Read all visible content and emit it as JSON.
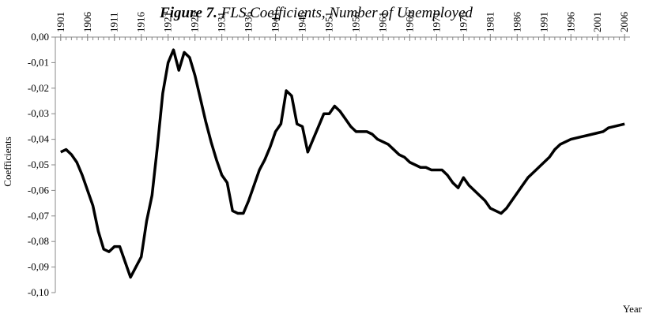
{
  "chart_data": {
    "type": "line",
    "figure_label": "Figure 7.",
    "title": "FLS Coefficients, Number of Unemployed",
    "ylabel": "Coefficients",
    "xlabel": "Year",
    "x": [
      1901,
      1902,
      1903,
      1904,
      1905,
      1906,
      1907,
      1908,
      1909,
      1910,
      1911,
      1912,
      1913,
      1914,
      1915,
      1916,
      1917,
      1918,
      1919,
      1920,
      1921,
      1922,
      1923,
      1924,
      1925,
      1926,
      1927,
      1928,
      1929,
      1930,
      1931,
      1932,
      1933,
      1934,
      1935,
      1936,
      1937,
      1938,
      1939,
      1940,
      1941,
      1942,
      1943,
      1944,
      1945,
      1946,
      1947,
      1948,
      1949,
      1950,
      1951,
      1952,
      1953,
      1954,
      1955,
      1956,
      1957,
      1958,
      1959,
      1960,
      1961,
      1962,
      1963,
      1964,
      1965,
      1966,
      1967,
      1968,
      1969,
      1970,
      1971,
      1972,
      1973,
      1974,
      1975,
      1976,
      1977,
      1978,
      1979,
      1980,
      1981,
      1982,
      1983,
      1984,
      1985,
      1986,
      1987,
      1988,
      1989,
      1990,
      1991,
      1992,
      1993,
      1994,
      1995,
      1996,
      1997,
      1998,
      1999,
      2000,
      2001,
      2002,
      2003,
      2004,
      2005,
      2006
    ],
    "series": [
      {
        "name": "FLS Coefficients",
        "color": "#000000",
        "values": [
          -0.045,
          -0.044,
          -0.046,
          -0.049,
          -0.054,
          -0.06,
          -0.066,
          -0.076,
          -0.083,
          -0.084,
          -0.082,
          -0.082,
          -0.088,
          -0.094,
          -0.09,
          -0.086,
          -0.072,
          -0.062,
          -0.043,
          -0.022,
          -0.01,
          -0.005,
          -0.013,
          -0.006,
          -0.008,
          -0.015,
          -0.024,
          -0.033,
          -0.041,
          -0.048,
          -0.054,
          -0.057,
          -0.068,
          -0.069,
          -0.069,
          -0.064,
          -0.058,
          -0.052,
          -0.048,
          -0.043,
          -0.037,
          -0.034,
          -0.021,
          -0.023,
          -0.034,
          -0.035,
          -0.045,
          -0.04,
          -0.035,
          -0.03,
          -0.03,
          -0.027,
          -0.029,
          -0.032,
          -0.035,
          -0.037,
          -0.037,
          -0.037,
          -0.038,
          -0.04,
          -0.041,
          -0.042,
          -0.044,
          -0.046,
          -0.047,
          -0.049,
          -0.05,
          -0.051,
          -0.051,
          -0.052,
          -0.052,
          -0.052,
          -0.054,
          -0.057,
          -0.059,
          -0.055,
          -0.058,
          -0.06,
          -0.062,
          -0.064,
          -0.067,
          -0.068,
          -0.069,
          -0.067,
          -0.064,
          -0.061,
          -0.058,
          -0.055,
          -0.053,
          -0.051,
          -0.049,
          -0.047,
          -0.044,
          -0.042,
          -0.041,
          -0.04,
          -0.0395,
          -0.039,
          -0.0385,
          -0.038,
          -0.0375,
          -0.037,
          -0.0355,
          -0.035,
          -0.0345,
          -0.034
        ]
      }
    ],
    "xlim": [
      1900,
      2007
    ],
    "xticks": [
      1901,
      1906,
      1911,
      1916,
      1921,
      1926,
      1931,
      1936,
      1941,
      1946,
      1951,
      1956,
      1961,
      1966,
      1971,
      1976,
      1981,
      1986,
      1991,
      1996,
      2001,
      2006
    ],
    "ylim": [
      -0.1,
      0
    ],
    "yticks": [
      {
        "value": 0,
        "label": "0,00"
      },
      {
        "value": -0.01,
        "label": "-0,01"
      },
      {
        "value": -0.02,
        "label": "-0,02"
      },
      {
        "value": -0.03,
        "label": "-0,03"
      },
      {
        "value": -0.04,
        "label": "-0,04"
      },
      {
        "value": -0.05,
        "label": "-0,05"
      },
      {
        "value": -0.06,
        "label": "-0,06"
      },
      {
        "value": -0.07,
        "label": "-0,07"
      },
      {
        "value": -0.08,
        "label": "-0,08"
      },
      {
        "value": -0.09,
        "label": "-0,09"
      },
      {
        "value": -0.1,
        "label": "-0,10"
      }
    ],
    "grid": false
  }
}
